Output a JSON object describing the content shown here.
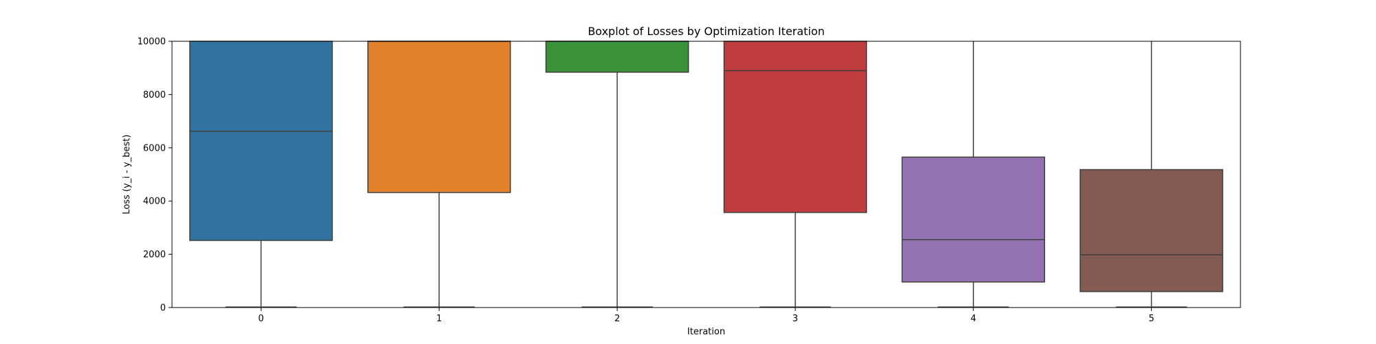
{
  "chart_data": {
    "type": "boxplot",
    "title": "Boxplot of Losses by Optimization Iteration",
    "xlabel": "Iteration",
    "ylabel": "Loss (y_i - y_best)",
    "ylim": [
      0,
      10000
    ],
    "yticks": [
      0,
      2000,
      4000,
      6000,
      8000,
      10000
    ],
    "grid": false,
    "categories": [
      "0",
      "1",
      "2",
      "3",
      "4",
      "5"
    ],
    "boxes": [
      {
        "category": "0",
        "color": "#3274a1",
        "whisker_low": 0,
        "q1": 2520,
        "median": 6620,
        "q3": 10000,
        "whisker_high": 10000,
        "cap_low": 0
      },
      {
        "category": "1",
        "color": "#e1812c",
        "whisker_low": 0,
        "q1": 4320,
        "median": 10000,
        "q3": 10000,
        "whisker_high": 10000,
        "cap_low": 0
      },
      {
        "category": "2",
        "color": "#3a923a",
        "whisker_low": 0,
        "q1": 8840,
        "median": 10000,
        "q3": 10000,
        "whisker_high": 10000,
        "cap_low": 0
      },
      {
        "category": "3",
        "color": "#c03d3e",
        "whisker_low": 0,
        "q1": 3570,
        "median": 8900,
        "q3": 10000,
        "whisker_high": 10000,
        "cap_low": 0
      },
      {
        "category": "4",
        "color": "#9372b2",
        "whisker_low": 0,
        "q1": 960,
        "median": 2550,
        "q3": 5650,
        "whisker_high": 10000,
        "cap_low": 0
      },
      {
        "category": "5",
        "color": "#845b53",
        "whisker_low": 0,
        "q1": 600,
        "median": 1980,
        "q3": 5180,
        "whisker_high": 10000,
        "cap_low": 0
      }
    ]
  }
}
